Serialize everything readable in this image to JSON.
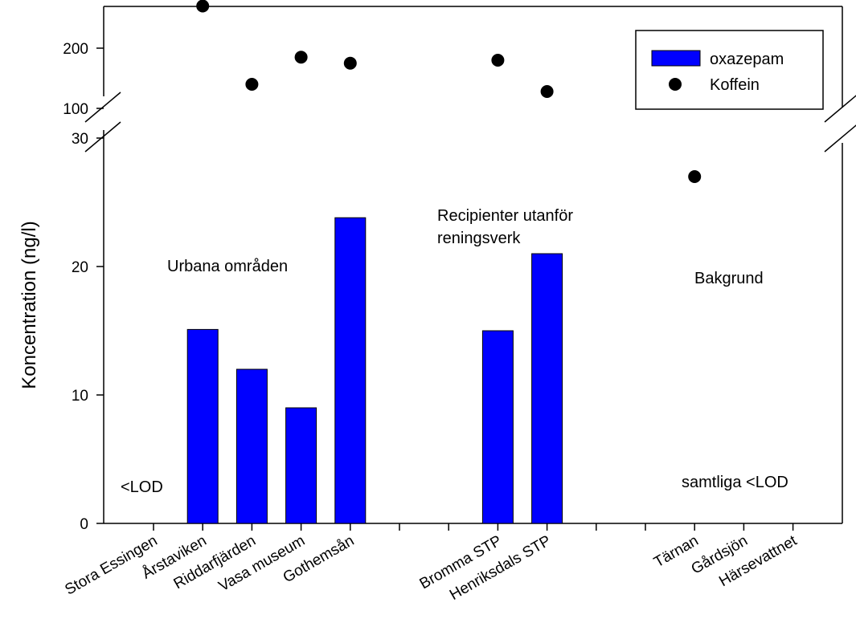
{
  "chart_data": {
    "type": "bar",
    "ylabel": "Koncentration (ng/l)",
    "xlabel": "",
    "title": "",
    "categories": [
      "Stora Essingen",
      "Årstaviken",
      "Riddarfjärden",
      "Vasa museum",
      "Gothemsån",
      "",
      "",
      "Bromma STP",
      "Henriksdals STP",
      "",
      "",
      "Tärnan",
      "Gårdsjön",
      "Härsevattnet"
    ],
    "series": [
      {
        "name": "oxazepam",
        "kind": "bar",
        "color": "#0000ff",
        "values": [
          null,
          15.1,
          12.0,
          9.0,
          23.8,
          null,
          null,
          15.0,
          21.0,
          null,
          null,
          null,
          null,
          null
        ]
      },
      {
        "name": "Koffein",
        "kind": "point",
        "color": "#000000",
        "values": [
          null,
          270,
          140,
          185,
          175,
          null,
          null,
          180,
          128,
          null,
          null,
          27,
          null,
          null
        ]
      }
    ],
    "y_axis": {
      "broken": true,
      "lower_segment": {
        "range": [
          0,
          30
        ],
        "ticks": [
          "0",
          "10",
          "20",
          "30"
        ]
      },
      "upper_segment": {
        "range": [
          100,
          300
        ],
        "ticks": [
          "100",
          "200"
        ]
      }
    },
    "annotations": [
      "<LOD",
      "Urbana områden",
      "Recipienter utanför",
      "reningsverk",
      "Bakgrund",
      "samtliga <LOD"
    ],
    "legend": {
      "position": "top-right"
    },
    "grid": false
  }
}
